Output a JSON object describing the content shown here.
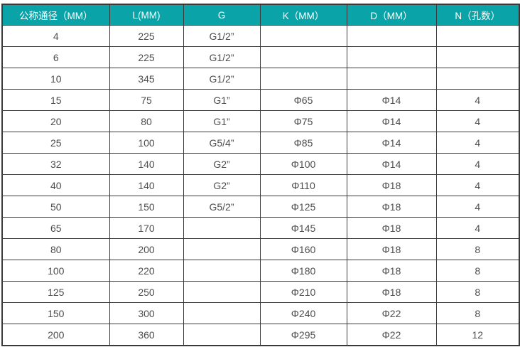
{
  "table": {
    "columns": [
      "公称通径（MM）",
      "L(MM)",
      "G",
      "K（MM）",
      "D（MM）",
      "N（孔数）"
    ],
    "rows": [
      [
        "4",
        "225",
        "G1/2”",
        "",
        "",
        ""
      ],
      [
        "6",
        "225",
        "G1/2”",
        "",
        "",
        ""
      ],
      [
        "10",
        "345",
        "G1/2”",
        "",
        "",
        ""
      ],
      [
        "15",
        "75",
        "G1”",
        "Φ65",
        "Φ14",
        "4"
      ],
      [
        "20",
        "80",
        "G1”",
        "Φ75",
        "Φ14",
        "4"
      ],
      [
        "25",
        "100",
        "G5/4”",
        "Φ85",
        "Φ14",
        "4"
      ],
      [
        "32",
        "140",
        "G2”",
        "Φ100",
        "Φ14",
        "4"
      ],
      [
        "40",
        "140",
        "G2”",
        "Φ110",
        "Φ18",
        "4"
      ],
      [
        "50",
        "150",
        "G5/2”",
        "Φ125",
        "Φ18",
        "4"
      ],
      [
        "65",
        "170",
        "",
        "Φ145",
        "Φ18",
        "4"
      ],
      [
        "80",
        "200",
        "",
        "Φ160",
        "Φ18",
        "8"
      ],
      [
        "100",
        "220",
        "",
        "Φ180",
        "Φ18",
        "8"
      ],
      [
        "125",
        "250",
        "",
        "Φ210",
        "Φ18",
        "8"
      ],
      [
        "150",
        "300",
        "",
        "Φ240",
        "Φ22",
        "8"
      ],
      [
        "200",
        "360",
        "",
        "Φ295",
        "Φ22",
        "12"
      ]
    ],
    "colors": {
      "header_bg": "#0aa3a8",
      "header_text": "#ffffff",
      "cell_text": "#4d4d4d",
      "border": "#3a3a3a",
      "row_bg": "#ffffff"
    }
  },
  "chart_data": {
    "type": "table",
    "title": "",
    "columns": [
      "公称通径（MM）",
      "L(MM)",
      "G",
      "K（MM）",
      "D（MM）",
      "N（孔数）"
    ],
    "rows": [
      [
        "4",
        "225",
        "G1/2”",
        "",
        "",
        ""
      ],
      [
        "6",
        "225",
        "G1/2”",
        "",
        "",
        ""
      ],
      [
        "10",
        "345",
        "G1/2”",
        "",
        "",
        ""
      ],
      [
        "15",
        "75",
        "G1”",
        "Φ65",
        "Φ14",
        "4"
      ],
      [
        "20",
        "80",
        "G1”",
        "Φ75",
        "Φ14",
        "4"
      ],
      [
        "25",
        "100",
        "G5/4”",
        "Φ85",
        "Φ14",
        "4"
      ],
      [
        "32",
        "140",
        "G2”",
        "Φ100",
        "Φ14",
        "4"
      ],
      [
        "40",
        "140",
        "G2”",
        "Φ110",
        "Φ18",
        "4"
      ],
      [
        "50",
        "150",
        "G5/2”",
        "Φ125",
        "Φ18",
        "4"
      ],
      [
        "65",
        "170",
        "",
        "Φ145",
        "Φ18",
        "4"
      ],
      [
        "80",
        "200",
        "",
        "Φ160",
        "Φ18",
        "8"
      ],
      [
        "100",
        "220",
        "",
        "Φ180",
        "Φ18",
        "8"
      ],
      [
        "125",
        "250",
        "",
        "Φ210",
        "Φ18",
        "8"
      ],
      [
        "150",
        "300",
        "",
        "Φ240",
        "Φ22",
        "8"
      ],
      [
        "200",
        "360",
        "",
        "Φ295",
        "Φ22",
        "12"
      ]
    ]
  }
}
